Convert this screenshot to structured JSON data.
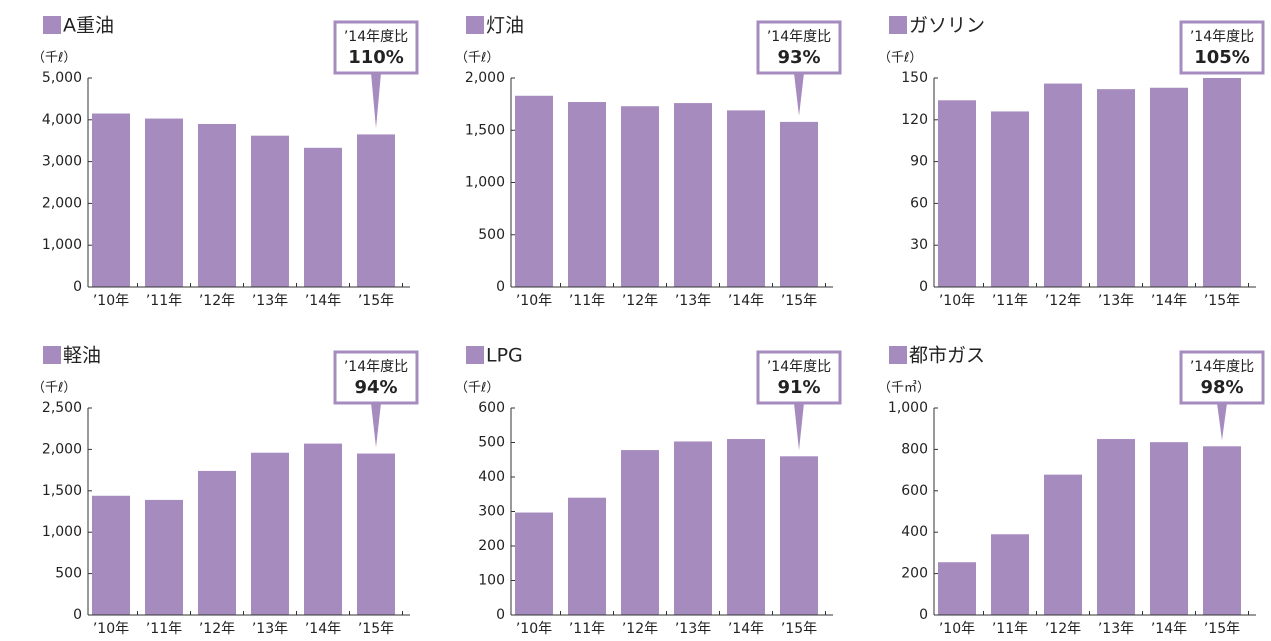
{
  "chart_data": [
    {
      "type": "bar",
      "title": "A重油",
      "unit": "（千ℓ）",
      "categories": [
        "’10年",
        "’11年",
        "’12年",
        "’13年",
        "’14年",
        "’15年"
      ],
      "values": [
        4150,
        4030,
        3900,
        3620,
        3330,
        3650
      ],
      "color": "#a68bbf",
      "ylim": [
        0,
        5000
      ],
      "yticks": [
        0,
        {
          "value": 1000,
          "label": "1,000"
        },
        {
          "value": 2000,
          "label": "2,000"
        },
        {
          "value": 3000,
          "label": "3,000"
        },
        {
          "value": 4000,
          "label": "4,000"
        },
        {
          "value": 5000,
          "label": "5,000"
        }
      ],
      "annotation_label": "’14年度比",
      "annotation": "110%"
    },
    {
      "type": "bar",
      "title": "灯油",
      "unit": "（千ℓ）",
      "categories": [
        "’10年",
        "’11年",
        "’12年",
        "’13年",
        "’14年",
        "’15年"
      ],
      "values": [
        1830,
        1770,
        1730,
        1760,
        1690,
        1580
      ],
      "color": "#a68bbf",
      "ylim": [
        0,
        2000
      ],
      "yticks": [
        0,
        500,
        {
          "value": 1000,
          "label": "1,000"
        },
        {
          "value": 1500,
          "label": "1,500"
        },
        {
          "value": 2000,
          "label": "2,000"
        }
      ],
      "annotation_label": "’14年度比",
      "annotation": "93%"
    },
    {
      "type": "bar",
      "title": "ガソリン",
      "unit": "（千ℓ）",
      "categories": [
        "’10年",
        "’11年",
        "’12年",
        "’13年",
        "’14年",
        "’15年"
      ],
      "values": [
        134,
        126,
        146,
        142,
        143,
        150
      ],
      "color": "#a68bbf",
      "ylim": [
        0,
        150
      ],
      "yticks": [
        0,
        30,
        60,
        90,
        120,
        150
      ],
      "annotation_label": "’14年度比",
      "annotation": "105%"
    },
    {
      "type": "bar",
      "title": "軽油",
      "unit": "（千ℓ）",
      "categories": [
        "’10年",
        "’11年",
        "’12年",
        "’13年",
        "’14年",
        "’15年"
      ],
      "values": [
        1440,
        1390,
        1740,
        1960,
        2070,
        1950
      ],
      "color": "#a68bbf",
      "ylim": [
        0,
        2500
      ],
      "yticks": [
        0,
        500,
        {
          "value": 1000,
          "label": "1,000"
        },
        {
          "value": 1500,
          "label": "1,500"
        },
        {
          "value": 2000,
          "label": "2,000"
        },
        {
          "value": 2500,
          "label": "2,500"
        }
      ],
      "annotation_label": "’14年度比",
      "annotation": "94%"
    },
    {
      "type": "bar",
      "title": "LPG",
      "unit": "（千ℓ）",
      "categories": [
        "’10年",
        "’11年",
        "’12年",
        "’13年",
        "’14年",
        "’15年"
      ],
      "values": [
        297,
        340,
        478,
        503,
        510,
        460
      ],
      "color": "#a68bbf",
      "ylim": [
        0,
        600
      ],
      "yticks": [
        0,
        100,
        200,
        300,
        400,
        500,
        600
      ],
      "annotation_label": "’14年度比",
      "annotation": "91%"
    },
    {
      "type": "bar",
      "title": "都市ガス",
      "unit": "（千㎥）",
      "categories": [
        "’10年",
        "’11年",
        "’12年",
        "’13年",
        "’14年",
        "’15年"
      ],
      "values": [
        255,
        390,
        678,
        850,
        835,
        815
      ],
      "color": "#a68bbf",
      "ylim": [
        0,
        1000
      ],
      "yticks": [
        0,
        200,
        400,
        600,
        800,
        {
          "value": 1000,
          "label": "1,000"
        }
      ],
      "annotation_label": "’14年度比",
      "annotation": "98%"
    }
  ]
}
